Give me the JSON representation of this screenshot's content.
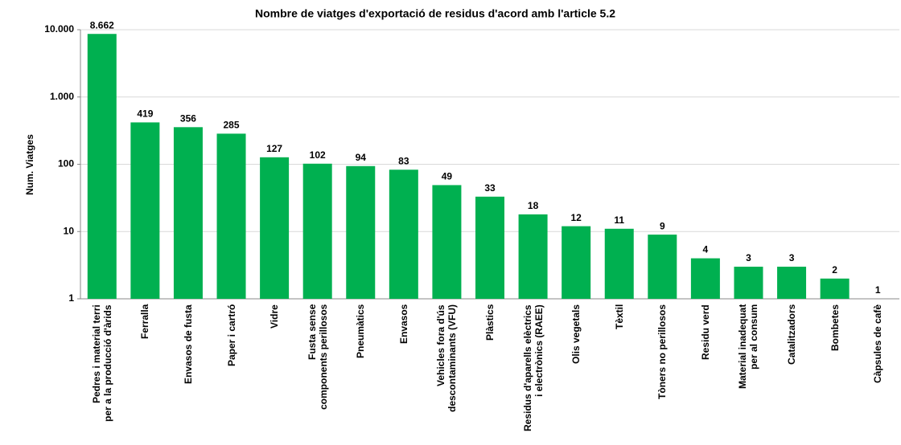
{
  "chart_data": {
    "type": "bar",
    "title": "Nombre de viatges d'exportació de residus d'acord amb l'article 5.2",
    "y_label": "Num. Viatges",
    "categories": [
      "Pedres i material terri\nper a la producció d'àrids",
      "Ferralla",
      "Envasos de fusta",
      "Paper i cartró",
      "Vidre",
      "Fusta sense\ncomponents perillosos",
      "Pneumàtics",
      "Envasos",
      "Vehicles fora d'ús\ndescontaminants (VFU)",
      "Plàstics",
      "Residus d'aparells elèctrics\ni electrònics (RAEE)",
      "Olis vegetals",
      "Tèxtil",
      "Tòners no perillosos",
      "Residu verd",
      "Material inadequat\nper al consum",
      "Catalitzadors",
      "Bombetes",
      "Càpsules de cafè"
    ],
    "values": [
      8662,
      419,
      356,
      285,
      127,
      102,
      94,
      83,
      49,
      33,
      18,
      12,
      11,
      9,
      4,
      3,
      3,
      2,
      1
    ],
    "value_labels": [
      "8.662",
      "419",
      "356",
      "285",
      "127",
      "102",
      "94",
      "83",
      "49",
      "33",
      "18",
      "12",
      "11",
      "9",
      "4",
      "3",
      "3",
      "2",
      "1"
    ],
    "color": "#00b050",
    "log_scale": true,
    "ylim": [
      1,
      10000
    ],
    "yticks": [
      1,
      10,
      100,
      {
        "value": 1000,
        "label": "1.000"
      },
      {
        "value": 10000,
        "label": "10.000"
      }
    ],
    "grid": true
  }
}
